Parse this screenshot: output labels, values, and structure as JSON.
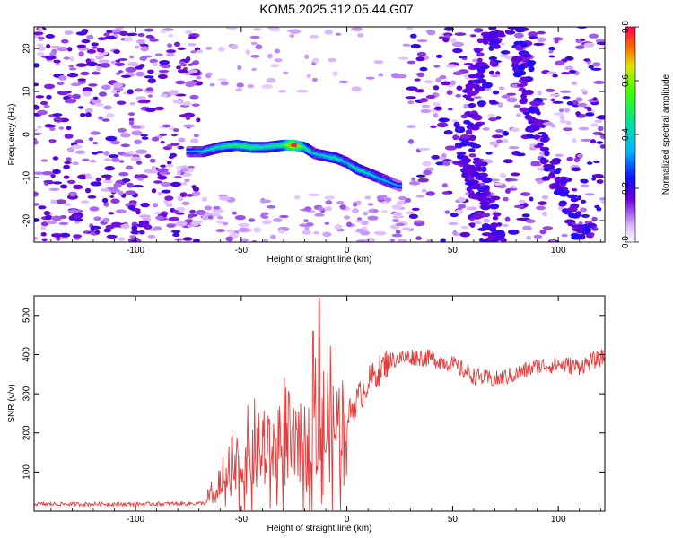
{
  "title": "KOM5.2025.312.05.44.G07",
  "chart_data": [
    {
      "type": "heatmap",
      "title": "KOM5.2025.312.05.44.G07",
      "xlabel": "Height of straight line (km)",
      "ylabel": "Frequency (Hz)",
      "xlim": [
        -148,
        122
      ],
      "ylim": [
        -25,
        25
      ],
      "xticks": [
        -100,
        -50,
        0,
        50,
        100
      ],
      "xtick_labels": [
        "-100",
        "-50",
        "0",
        "50",
        "100"
      ],
      "yticks": [
        -20,
        -10,
        0,
        10,
        20
      ],
      "ytick_labels": [
        "-20",
        "-10",
        "0",
        "10",
        "20"
      ],
      "colorbar": {
        "label": "Normalized spectral amplitude",
        "range": [
          0.0,
          0.8
        ],
        "ticks": [
          0.0,
          0.2,
          0.4,
          0.6,
          0.8
        ],
        "tick_labels": [
          "0.0",
          "0.2",
          "0.4",
          "0.6",
          "0.8"
        ]
      },
      "ridge": {
        "x": [
          -75,
          -68,
          -60,
          -52,
          -45,
          -38,
          -30,
          -25,
          -20,
          -15,
          -10,
          -5,
          0,
          5,
          10,
          15,
          20,
          25
        ],
        "y": [
          -4,
          -4,
          -3,
          -2.5,
          -3,
          -3,
          -2.5,
          -2.5,
          -3,
          -4.5,
          -5,
          -5.5,
          -6.5,
          -8,
          -9,
          -10,
          -11,
          -12
        ],
        "amplitude": [
          0.35,
          0.4,
          0.45,
          0.5,
          0.5,
          0.45,
          0.5,
          0.75,
          0.5,
          0.4,
          0.42,
          0.45,
          0.4,
          0.45,
          0.42,
          0.4,
          0.38,
          0.3
        ]
      }
    },
    {
      "type": "line",
      "xlabel": "Height of straight line (km)",
      "ylabel": "SNR (v/v)",
      "xlim": [
        -148,
        122
      ],
      "ylim": [
        0,
        550
      ],
      "xticks": [
        -100,
        -50,
        0,
        50,
        100
      ],
      "xtick_labels": [
        "-100",
        "-50",
        "0",
        "50",
        "100"
      ],
      "yticks": [
        100,
        200,
        300,
        400,
        500
      ],
      "ytick_labels": [
        "100",
        "200",
        "300",
        "400",
        "500"
      ],
      "color": "#e83a3a",
      "series_trend": {
        "x": [
          -148,
          -100,
          -67,
          -60,
          -50,
          -40,
          -30,
          -20,
          -10,
          0,
          10,
          20,
          30,
          40,
          50,
          60,
          70,
          80,
          90,
          100,
          110,
          122
        ],
        "y": [
          18,
          18,
          20,
          55,
          110,
          140,
          160,
          170,
          190,
          240,
          330,
          385,
          395,
          390,
          375,
          345,
          335,
          350,
          370,
          375,
          370,
          395
        ]
      },
      "peak": {
        "x": -13,
        "y": 545
      }
    }
  ]
}
